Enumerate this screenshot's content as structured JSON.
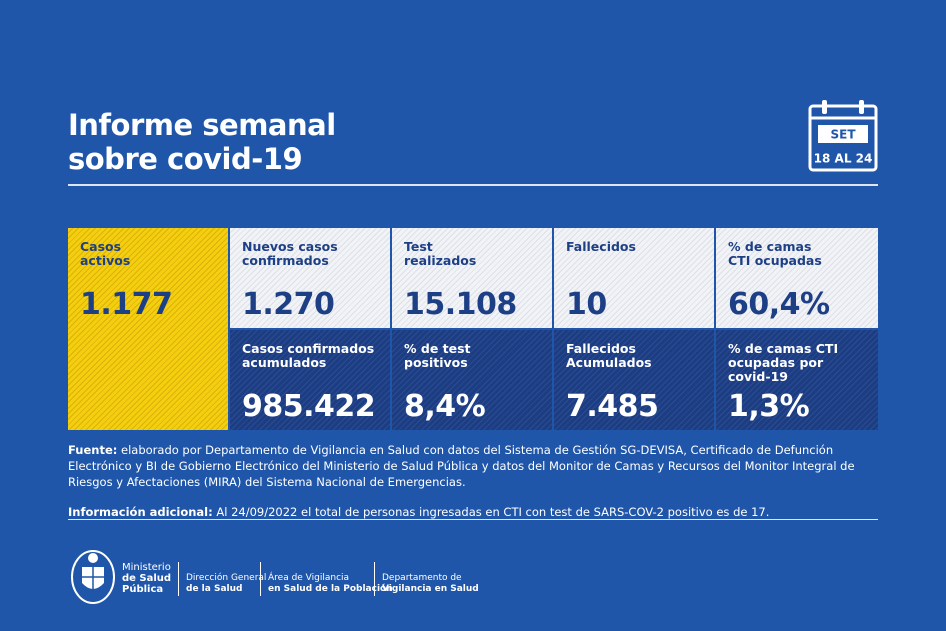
{
  "header": {
    "title_lines": [
      "Informe semanal",
      "sobre covid-19"
    ]
  },
  "calendar": {
    "month": "SET",
    "range": "18 AL 24"
  },
  "cards": {
    "row1": [
      {
        "label": [
          "Casos",
          "activos"
        ],
        "value": "1.177"
      },
      {
        "label": [
          "Nuevos casos",
          "confirmados"
        ],
        "value": "1.270"
      },
      {
        "label": [
          "Test",
          "realizados"
        ],
        "value": "15.108"
      },
      {
        "label": [
          "Fallecidos"
        ],
        "value": "10"
      },
      {
        "label": [
          "% de camas",
          "CTI ocupadas"
        ],
        "value": "60,4%"
      }
    ],
    "row2": [
      {
        "label": [
          "Casos confirmados",
          "acumulados"
        ],
        "value": "985.422"
      },
      {
        "label": [
          "% de test",
          "positivos"
        ],
        "value": "8,4%"
      },
      {
        "label": [
          "Fallecidos",
          "Acumulados"
        ],
        "value": "7.485"
      },
      {
        "label": [
          "% de camas CTI",
          "ocupadas por covid-19"
        ],
        "value": "1,3%"
      }
    ]
  },
  "notes": {
    "source_label": "Fuente:",
    "source_text": "elaborado por Departamento de Vigilancia en Salud con datos del Sistema de Gestión SG-DEVISA, Certificado de Defunción Electrónico y BI de Gobierno Electrónico del Ministerio de Salud Pública y datos del Monitor de Camas y Recursos del Monitor  Integral de Riesgos y Afectaciones (MIRA) del Sistema Nacional de Emergencias.",
    "additional_label": "Información adicional:",
    "additional_text": "Al 24/09/2022 el total de personas ingresadas en CTI con test de SARS-COV-2 positivo es de 17."
  },
  "footer": {
    "ministry": [
      "Ministerio",
      "de Salud",
      "Pública"
    ],
    "units": [
      [
        "Dirección General",
        "de la Salud"
      ],
      [
        "Área de Vigilancia",
        "en Salud de la Población"
      ],
      [
        "Departamento de",
        "Vigilancia en Salud"
      ]
    ]
  }
}
